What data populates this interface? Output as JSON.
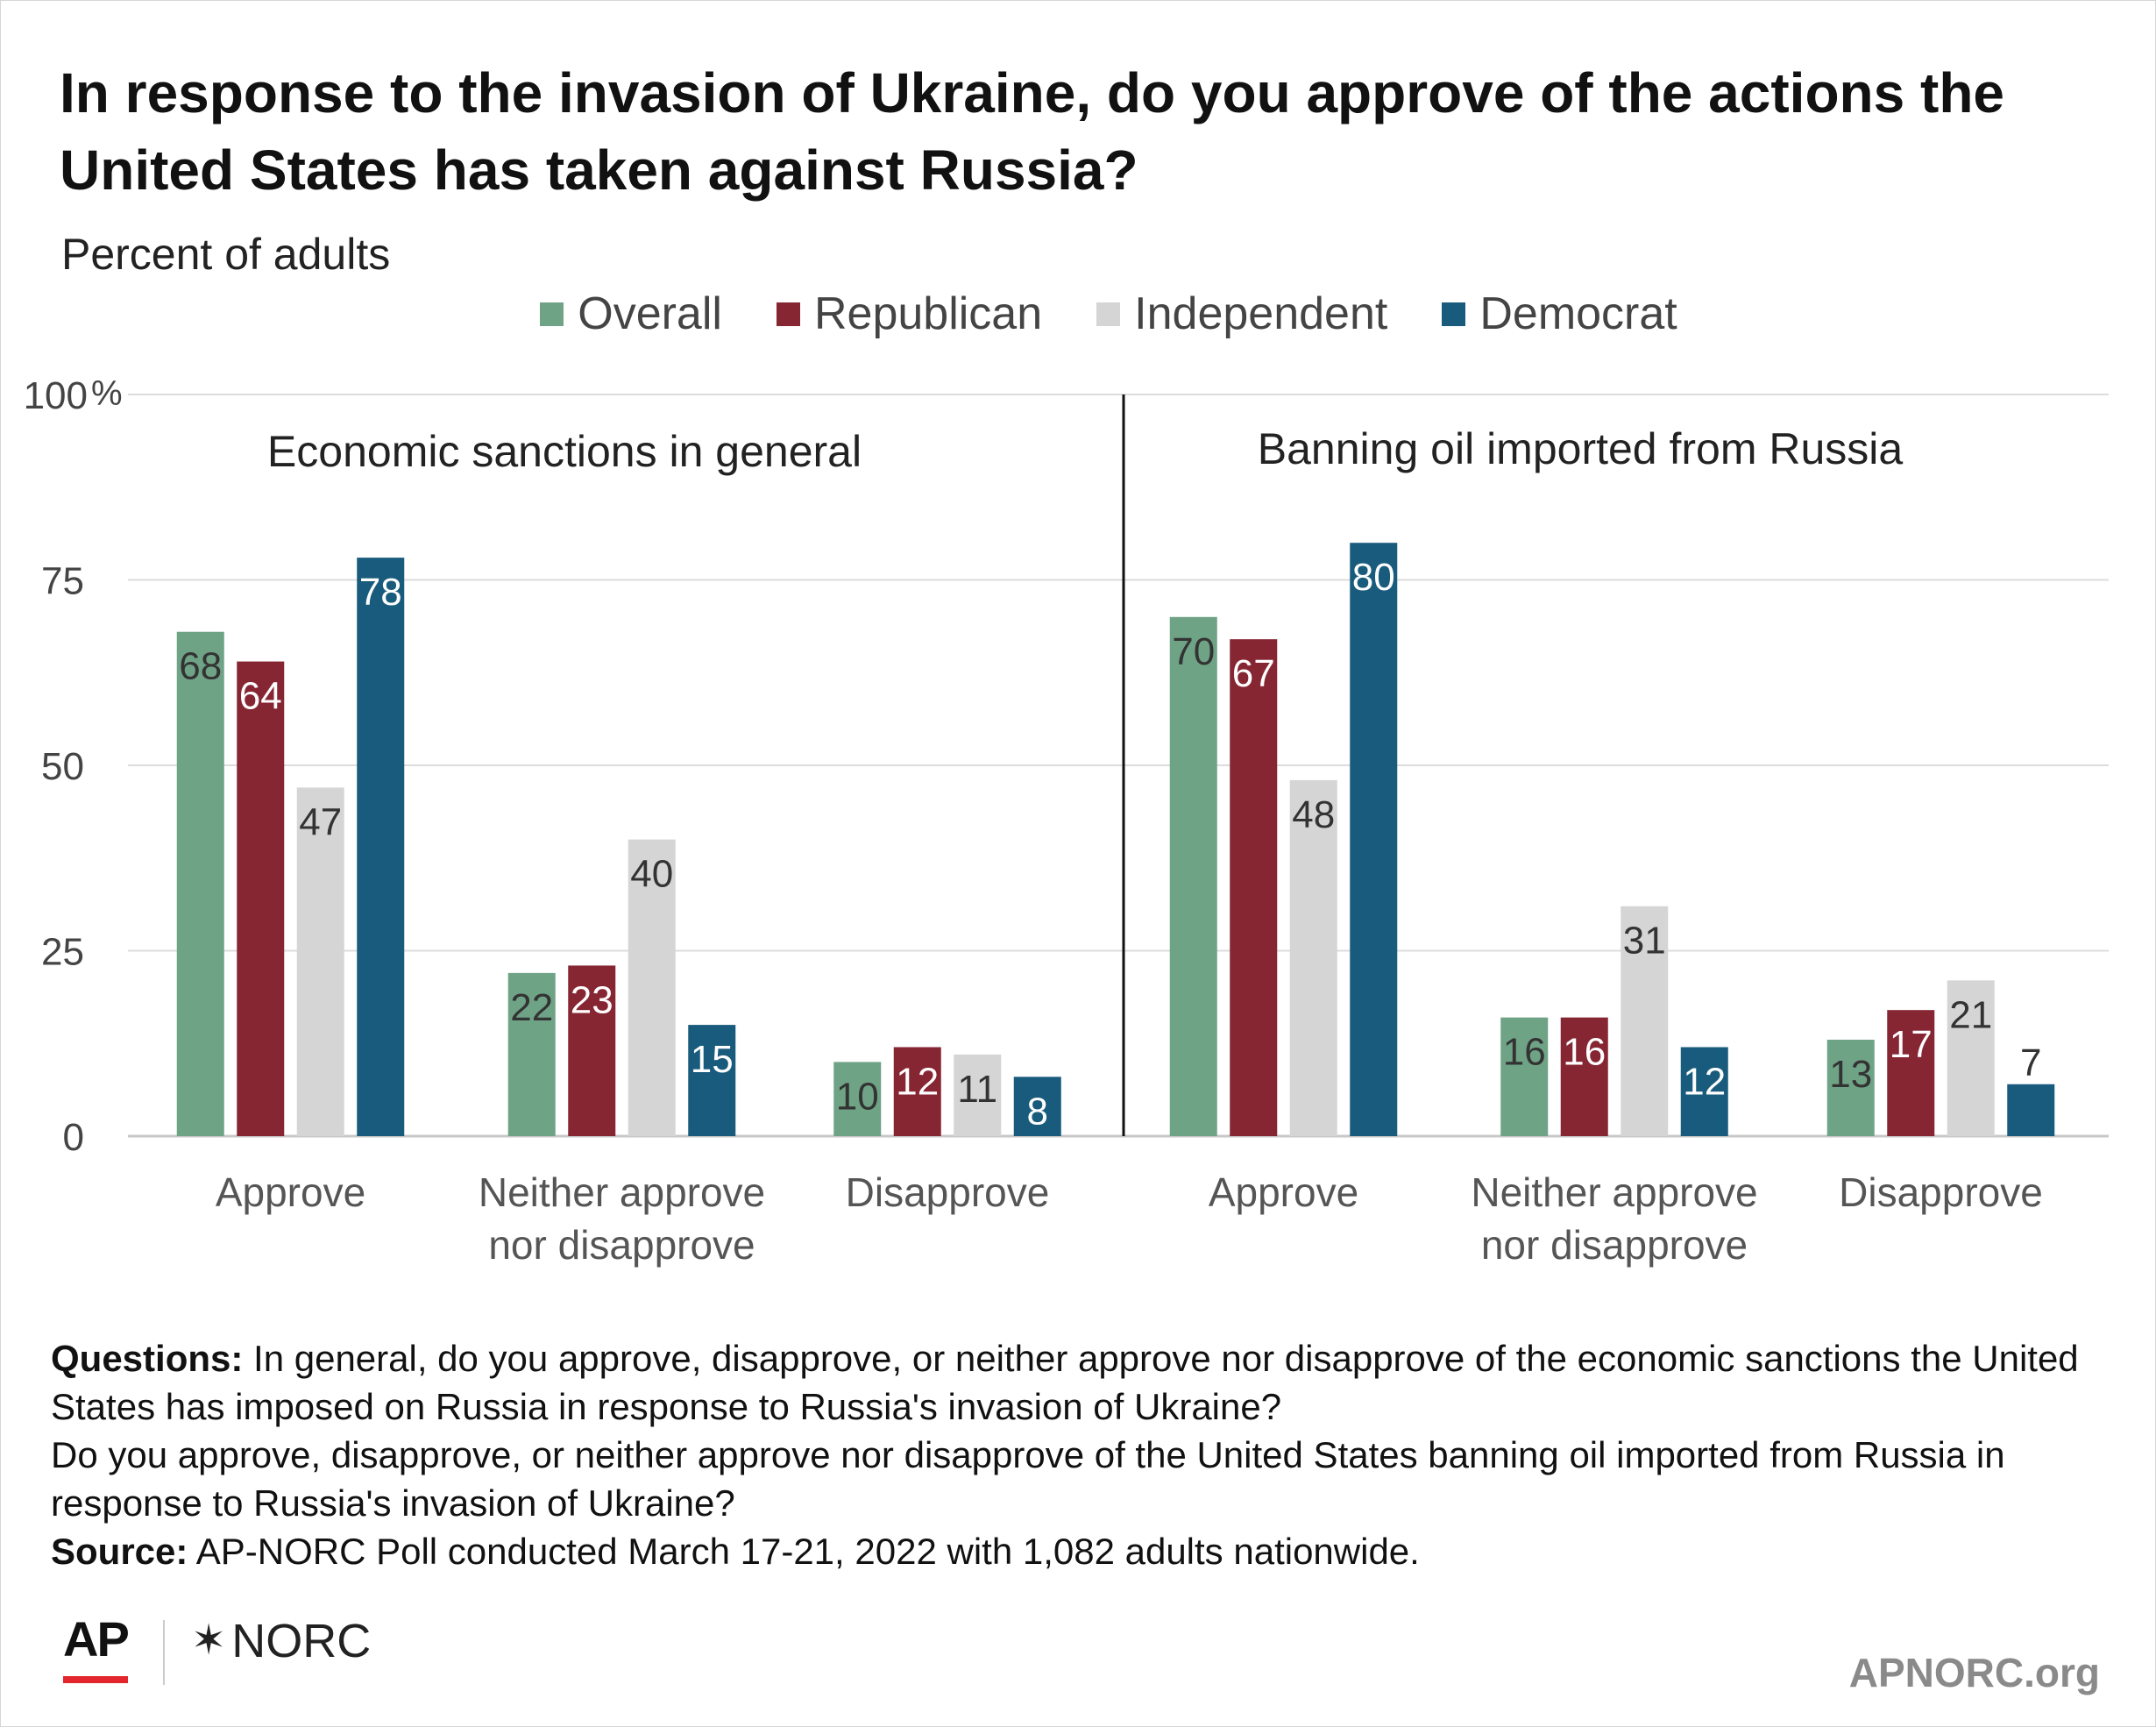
{
  "title": "In response to the invasion of Ukraine, do you approve of the actions the United States has taken against Russia?",
  "subtitle": "Percent of adults",
  "legend": [
    {
      "name": "Overall",
      "color": "#6fa386"
    },
    {
      "name": "Republican",
      "color": "#862633"
    },
    {
      "name": "Independent",
      "color": "#d5d5d5"
    },
    {
      "name": "Democrat",
      "color": "#195b7c"
    }
  ],
  "chart_data": {
    "type": "bar",
    "ylim": [
      0,
      100
    ],
    "ytick_labels": [
      "0",
      "25",
      "50",
      "75",
      "100"
    ],
    "ytick_unit": "%",
    "grid": true,
    "legend_position": "top",
    "series_names": [
      "Overall",
      "Republican",
      "Independent",
      "Democrat"
    ],
    "panels": [
      {
        "title": "Economic sanctions in general",
        "groups": [
          {
            "label": [
              "Approve"
            ],
            "values": [
              68,
              64,
              47,
              78
            ]
          },
          {
            "label": [
              "Neither approve",
              "nor disapprove"
            ],
            "values": [
              22,
              23,
              40,
              15
            ]
          },
          {
            "label": [
              "Disapprove"
            ],
            "values": [
              10,
              12,
              11,
              8
            ]
          }
        ]
      },
      {
        "title": "Banning oil imported from Russia",
        "groups": [
          {
            "label": [
              "Approve"
            ],
            "values": [
              70,
              67,
              48,
              80
            ]
          },
          {
            "label": [
              "Neither approve",
              "nor disapprove"
            ],
            "values": [
              16,
              16,
              31,
              12
            ]
          },
          {
            "label": [
              "Disapprove"
            ],
            "values": [
              13,
              17,
              21,
              7
            ]
          }
        ]
      }
    ]
  },
  "notes": {
    "questions_label": "Questions:",
    "questions_text": " In general, do you approve, disapprove, or neither approve nor disapprove of the economic sanctions the United States has imposed on Russia in response to Russia's invasion of Ukraine?",
    "questions_text2": "Do you approve, disapprove, or neither approve nor disapprove of the United States banning oil imported from Russia in response to Russia's invasion of Ukraine?",
    "source_label": "Source:",
    "source_text": " AP-NORC Poll conducted March 17-21, 2022 with 1,082 adults nationwide."
  },
  "footer": {
    "ap_logo": "AP",
    "norc_mark": "✶",
    "norc_logo": "NORC",
    "site": "APNORC.org"
  }
}
